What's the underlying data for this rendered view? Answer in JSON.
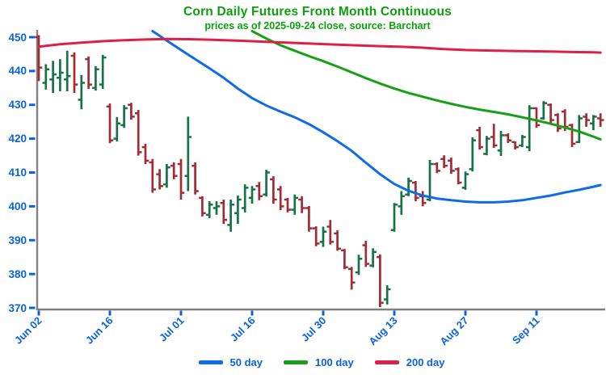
{
  "header": {
    "title": "Corn Daily Futures Front Month Continuous",
    "subtitle": "prices as of 2025-09-24 close, source: Barchart"
  },
  "axis": {
    "spine_color": "#808080",
    "tick_color": "#0b62e0",
    "label_color": "#0b62e0",
    "title_color": "#0ba00b"
  },
  "legend": {
    "items": [
      {
        "label": "50 day",
        "color": "#0f6be8"
      },
      {
        "label": "100 day",
        "color": "#17a017"
      },
      {
        "label": "200 day",
        "color": "#dc2144"
      }
    ]
  },
  "chart_data": {
    "type": "ohlc",
    "title": "Corn Daily Futures Front Month Continuous",
    "subtitle": "prices as of 2025-09-24 close, source: Barchart",
    "ylim": [
      369.5,
      452.3
    ],
    "grid": "off",
    "legend_position": "bottom-center",
    "up_color": "#177245",
    "down_color": "#a22c35",
    "y_ticks": [
      450,
      440,
      430,
      420,
      410,
      400,
      390,
      380,
      370
    ],
    "x_tick_labels": [
      "Jun 02",
      "Jun 16",
      "Jul 01",
      "Jul 16",
      "Jul 30",
      "Aug 13",
      "Aug 27",
      "Sep 11"
    ],
    "x_tick_indices": [
      0,
      10,
      20,
      30,
      40,
      50,
      60,
      70
    ],
    "dates": [
      "Jun 02",
      "Jun 03",
      "Jun 04",
      "Jun 05",
      "Jun 06",
      "Jun 09",
      "Jun 10",
      "Jun 11",
      "Jun 12",
      "Jun 13",
      "Jun 16",
      "Jun 17",
      "Jun 18",
      "Jun 20",
      "Jun 23",
      "Jun 24",
      "Jun 25",
      "Jun 26",
      "Jun 27",
      "Jun 30",
      "Jul 01",
      "Jul 02",
      "Jul 03",
      "Jul 07",
      "Jul 08",
      "Jul 09",
      "Jul 10",
      "Jul 11",
      "Jul 14",
      "Jul 15",
      "Jul 16",
      "Jul 17",
      "Jul 18",
      "Jul 21",
      "Jul 22",
      "Jul 23",
      "Jul 24",
      "Jul 25",
      "Jul 28",
      "Jul 29",
      "Jul 30",
      "Jul 31",
      "Aug 01",
      "Aug 04",
      "Aug 05",
      "Aug 06",
      "Aug 07",
      "Aug 08",
      "Aug 11",
      "Aug 12",
      "Aug 13",
      "Aug 14",
      "Aug 15",
      "Aug 18",
      "Aug 19",
      "Aug 20",
      "Aug 21",
      "Aug 22",
      "Aug 25",
      "Aug 26",
      "Aug 27",
      "Aug 28",
      "Aug 29",
      "Sep 02",
      "Sep 03",
      "Sep 04",
      "Sep 05",
      "Sep 08",
      "Sep 09",
      "Sep 10",
      "Sep 11",
      "Sep 12",
      "Sep 15",
      "Sep 16",
      "Sep 17",
      "Sep 18",
      "Sep 19",
      "Sep 22",
      "Sep 23",
      "Sep 24"
    ],
    "bars_format": [
      "open",
      "high",
      "low",
      "close"
    ],
    "bars": [
      [
        450.0,
        450.6,
        437.0,
        441.0
      ],
      [
        436.5,
        442.0,
        434.5,
        440.5
      ],
      [
        437.5,
        443.0,
        433.5,
        439.0
      ],
      [
        438.0,
        443.5,
        434.0,
        439.5
      ],
      [
        437.5,
        446.0,
        434.0,
        438.5
      ],
      [
        444.5,
        445.5,
        433.5,
        436.0
      ],
      [
        431.5,
        438.8,
        428.7,
        436.5
      ],
      [
        443.5,
        444.3,
        434.7,
        436.0
      ],
      [
        435.0,
        441.4,
        434.2,
        440.5
      ],
      [
        436.0,
        444.8,
        434.7,
        444.0
      ],
      [
        429.5,
        430.4,
        418.7,
        419.5
      ],
      [
        420.0,
        426.4,
        419.2,
        424.5
      ],
      [
        424.0,
        429.9,
        423.2,
        429.0
      ],
      [
        430.0,
        430.6,
        425.6,
        426.5
      ],
      [
        427.5,
        428.5,
        415.0,
        416.0
      ],
      [
        417.5,
        418.5,
        412.5,
        413.5
      ],
      [
        413.0,
        414.0,
        404.0,
        405.0
      ],
      [
        409.5,
        411.0,
        405.0,
        406.0
      ],
      [
        406.5,
        412.5,
        405.5,
        411.5
      ],
      [
        412.0,
        413.0,
        408.0,
        409.0
      ],
      [
        412.5,
        414.0,
        402.0,
        404.0
      ],
      [
        409.0,
        426.5,
        404.5,
        420.5
      ],
      [
        412.0,
        413.0,
        403.5,
        404.5
      ],
      [
        402.5,
        403.0,
        397.0,
        398.0
      ],
      [
        397.5,
        401.5,
        396.5,
        400.5
      ],
      [
        399.5,
        401.5,
        397.5,
        400.0
      ],
      [
        401.0,
        402.0,
        394.8,
        396.0
      ],
      [
        394.5,
        402.0,
        392.5,
        400.5
      ],
      [
        398.0,
        403.2,
        394.8,
        402.0
      ],
      [
        399.5,
        406.5,
        398.2,
        405.5
      ],
      [
        402.5,
        406.0,
        400.8,
        405.0
      ],
      [
        406.0,
        407.2,
        401.8,
        403.0
      ],
      [
        403.5,
        410.8,
        402.9,
        410.0
      ],
      [
        408.0,
        408.9,
        400.8,
        402.0
      ],
      [
        405.0,
        406.0,
        398.9,
        400.0
      ],
      [
        402.0,
        402.5,
        398.2,
        399.0
      ],
      [
        399.0,
        403.5,
        397.5,
        402.5
      ],
      [
        402.0,
        403.0,
        398.0,
        399.5
      ],
      [
        399.5,
        400.1,
        392.5,
        393.5
      ],
      [
        393.5,
        394.1,
        388.2,
        389.0
      ],
      [
        389.5,
        394.0,
        388.0,
        392.5
      ],
      [
        394.0,
        396.0,
        388.7,
        389.5
      ],
      [
        392.0,
        392.9,
        386.9,
        387.5
      ],
      [
        387.0,
        387.4,
        381.4,
        382.0
      ],
      [
        381.5,
        382.1,
        375.4,
        377.5
      ],
      [
        380.5,
        385.7,
        379.7,
        384.5
      ],
      [
        388.5,
        389.8,
        382.1,
        383.0
      ],
      [
        382.5,
        387.6,
        382.0,
        386.5
      ],
      [
        385.0,
        385.8,
        370.2,
        371.5
      ],
      [
        372.5,
        376.7,
        371.0,
        375.5
      ],
      [
        393.0,
        401.0,
        392.5,
        400.5
      ],
      [
        400.0,
        404.5,
        397.5,
        403.0
      ],
      [
        403.5,
        408.5,
        403.0,
        407.5
      ],
      [
        407.0,
        407.5,
        401.5,
        402.5
      ],
      [
        403.0,
        404.5,
        400.0,
        401.0
      ],
      [
        402.0,
        413.7,
        401.5,
        412.5
      ],
      [
        412.5,
        413.0,
        409.8,
        410.5
      ],
      [
        414.0,
        415.1,
        411.3,
        412.0
      ],
      [
        413.5,
        414.4,
        409.6,
        410.5
      ],
      [
        411.0,
        411.5,
        406.5,
        407.0
      ],
      [
        405.5,
        410.3,
        404.9,
        409.5
      ],
      [
        411.0,
        420.4,
        410.3,
        419.5
      ],
      [
        422.5,
        423.5,
        416.8,
        417.5
      ],
      [
        415.5,
        420.8,
        415.1,
        420.0
      ],
      [
        420.5,
        424.4,
        417.3,
        418.0
      ],
      [
        416.5,
        422.3,
        414.9,
        421.0
      ],
      [
        421.0,
        421.6,
        418.7,
        419.5
      ],
      [
        419.0,
        419.2,
        416.8,
        417.5
      ],
      [
        418.0,
        421.1,
        417.5,
        420.5
      ],
      [
        417.5,
        429.9,
        416.3,
        429.0
      ],
      [
        429.0,
        429.2,
        423.2,
        424.0
      ],
      [
        426.0,
        431.1,
        425.6,
        430.5
      ],
      [
        430.0,
        430.4,
        424.4,
        425.5
      ],
      [
        427.0,
        427.5,
        422.0,
        423.0
      ],
      [
        428.0,
        428.7,
        422.3,
        423.5
      ],
      [
        424.0,
        424.4,
        417.5,
        418.5
      ],
      [
        419.0,
        427.0,
        418.7,
        426.0
      ],
      [
        426.5,
        427.5,
        423.5,
        425.5
      ],
      [
        424.5,
        427.0,
        422.5,
        426.5
      ],
      [
        426.0,
        427.5,
        423.5,
        425.5
      ]
    ],
    "moving_averages": [
      {
        "name": "50 day",
        "color": "#0f6be8",
        "points": [
          [
            16,
            451.8
          ],
          [
            18,
            449.0
          ],
          [
            20,
            446.2
          ],
          [
            22,
            443.5
          ],
          [
            24,
            440.8
          ],
          [
            26,
            438.0
          ],
          [
            28,
            434.8
          ],
          [
            30,
            432.0
          ],
          [
            32,
            429.8
          ],
          [
            34,
            428.0
          ],
          [
            36,
            426.3
          ],
          [
            38,
            424.3
          ],
          [
            40,
            421.9
          ],
          [
            42,
            419.3
          ],
          [
            44,
            416.4
          ],
          [
            46,
            412.9
          ],
          [
            48,
            409.5
          ],
          [
            50,
            406.6
          ],
          [
            52,
            404.6
          ],
          [
            54,
            403.2
          ],
          [
            56,
            402.3
          ],
          [
            58,
            401.8
          ],
          [
            60,
            401.4
          ],
          [
            62,
            401.2
          ],
          [
            64,
            401.2
          ],
          [
            66,
            401.4
          ],
          [
            68,
            401.8
          ],
          [
            70,
            402.5
          ],
          [
            72,
            403.2
          ],
          [
            74,
            404.1
          ],
          [
            76,
            404.9
          ],
          [
            78,
            405.8
          ],
          [
            79,
            406.3
          ]
        ]
      },
      {
        "name": "100 day",
        "color": "#17a017",
        "points": [
          [
            30,
            451.8
          ],
          [
            32,
            449.6
          ],
          [
            34,
            447.6
          ],
          [
            36,
            446.0
          ],
          [
            38,
            444.4
          ],
          [
            40,
            442.9
          ],
          [
            42,
            441.3
          ],
          [
            44,
            439.6
          ],
          [
            46,
            437.9
          ],
          [
            48,
            436.3
          ],
          [
            50,
            434.8
          ],
          [
            52,
            433.5
          ],
          [
            54,
            432.4
          ],
          [
            56,
            431.3
          ],
          [
            58,
            430.3
          ],
          [
            60,
            429.4
          ],
          [
            62,
            428.6
          ],
          [
            64,
            427.9
          ],
          [
            66,
            427.2
          ],
          [
            68,
            426.3
          ],
          [
            70,
            425.4
          ],
          [
            72,
            424.4
          ],
          [
            74,
            423.3
          ],
          [
            76,
            422.1
          ],
          [
            78,
            420.6
          ],
          [
            79,
            419.8
          ]
        ]
      },
      {
        "name": "200 day",
        "color": "#dc2144",
        "points": [
          [
            0,
            447.2
          ],
          [
            3,
            447.9
          ],
          [
            6,
            448.4
          ],
          [
            9,
            448.8
          ],
          [
            12,
            449.1
          ],
          [
            15,
            449.3
          ],
          [
            18,
            449.45
          ],
          [
            21,
            449.4
          ],
          [
            24,
            449.25
          ],
          [
            27,
            449.05
          ],
          [
            30,
            448.8
          ],
          [
            33,
            448.55
          ],
          [
            36,
            448.3
          ],
          [
            39,
            448.05
          ],
          [
            42,
            447.8
          ],
          [
            45,
            447.55
          ],
          [
            48,
            447.35
          ],
          [
            51,
            447.15
          ],
          [
            54,
            446.9
          ],
          [
            57,
            446.5
          ],
          [
            60,
            446.2
          ],
          [
            63,
            446.05
          ],
          [
            66,
            445.95
          ],
          [
            69,
            445.85
          ],
          [
            72,
            445.75
          ],
          [
            75,
            445.6
          ],
          [
            78,
            445.5
          ],
          [
            79,
            445.45
          ]
        ]
      }
    ]
  }
}
